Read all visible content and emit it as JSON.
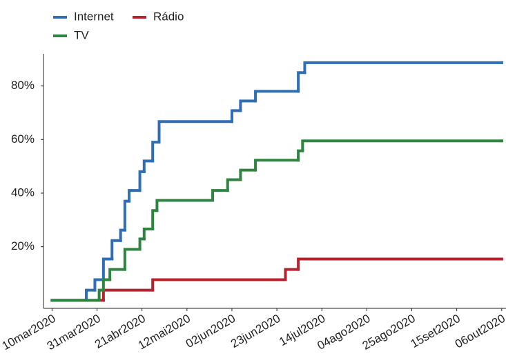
{
  "chart_data": {
    "type": "step-line",
    "xlim": [
      "2020-03-06",
      "2020-10-08"
    ],
    "xticks": [
      {
        "value": "2020-03-10",
        "label": "10mar2020"
      },
      {
        "value": "2020-03-31",
        "label": "31mar2020"
      },
      {
        "value": "2020-04-21",
        "label": "21abr2020"
      },
      {
        "value": "2020-05-12",
        "label": "12mai2020"
      },
      {
        "value": "2020-06-02",
        "label": "02jun2020"
      },
      {
        "value": "2020-06-23",
        "label": "23jun2020"
      },
      {
        "value": "2020-07-14",
        "label": "14jul2020"
      },
      {
        "value": "2020-08-04",
        "label": "04ago2020"
      },
      {
        "value": "2020-08-25",
        "label": "25ago2020"
      },
      {
        "value": "2020-09-15",
        "label": "15set2020"
      },
      {
        "value": "2020-10-06",
        "label": "06out2020"
      }
    ],
    "ylim": [
      -3,
      92
    ],
    "yticks": [
      {
        "value": 20,
        "label": "20%"
      },
      {
        "value": 40,
        "label": "40%"
      },
      {
        "value": 60,
        "label": "60%"
      },
      {
        "value": 80,
        "label": "80%"
      }
    ],
    "series": [
      {
        "name": "Internet",
        "color": "#2f6db5",
        "x": [
          "2020-03-10",
          "2020-03-26",
          "2020-03-30",
          "2020-04-03",
          "2020-04-07",
          "2020-04-11",
          "2020-04-13",
          "2020-04-15",
          "2020-04-20",
          "2020-04-22",
          "2020-04-26",
          "2020-04-29",
          "2020-06-02",
          "2020-06-06",
          "2020-06-13",
          "2020-07-03",
          "2020-07-06",
          "2020-10-06"
        ],
        "values": [
          0,
          3.8,
          7.7,
          15.4,
          22.3,
          26.2,
          37,
          41,
          48,
          52,
          59,
          66.7,
          70.8,
          74.4,
          78,
          85,
          88.7,
          88.7
        ]
      },
      {
        "name": "Rádio",
        "color": "#b5222f",
        "x": [
          "2020-03-10",
          "2020-04-03",
          "2020-04-26",
          "2020-06-27",
          "2020-07-03",
          "2020-10-06"
        ],
        "values": [
          0,
          3.8,
          7.7,
          11.5,
          15.4,
          15.4
        ]
      },
      {
        "name": "TV",
        "color": "#2e8540",
        "x": [
          "2020-03-10",
          "2020-04-01",
          "2020-04-03",
          "2020-04-06",
          "2020-04-13",
          "2020-04-20",
          "2020-04-22",
          "2020-04-26",
          "2020-04-28",
          "2020-05-24",
          "2020-05-31",
          "2020-06-06",
          "2020-06-13",
          "2020-07-03",
          "2020-07-05",
          "2020-10-06"
        ],
        "values": [
          0,
          3.8,
          7.7,
          11.5,
          19,
          22.9,
          26.6,
          33.5,
          37.3,
          41,
          45,
          48.6,
          52.3,
          55.8,
          59.5,
          59.5
        ]
      }
    ]
  }
}
